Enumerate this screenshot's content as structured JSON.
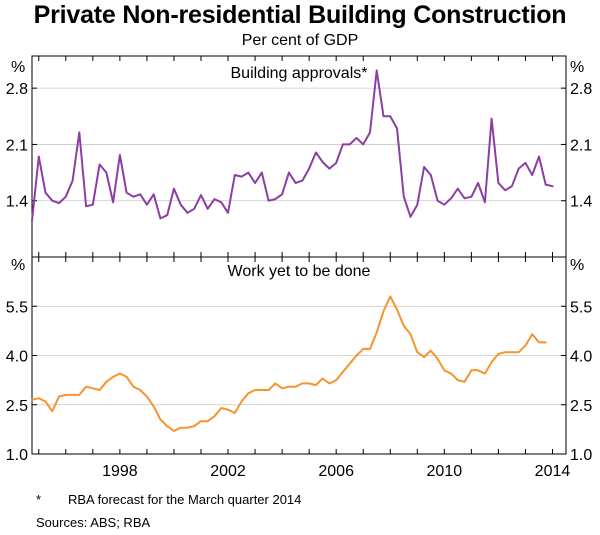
{
  "title": "Private Non-residential Building Construction",
  "subtitle": "Per cent of GDP",
  "footnote": {
    "marker": "*",
    "text": "RBA forecast for the March quarter 2014"
  },
  "sources": "Sources:  ABS; RBA",
  "colors": {
    "approvals": "#8B3FA3",
    "work": "#F7942E",
    "frame": "#000000",
    "grid": "#c8c8c8"
  },
  "chart_data": [
    {
      "type": "line",
      "title": "Building approvals*",
      "unit_label": "%",
      "color": "#8B3FA3",
      "ylim": [
        0.7,
        3.2
      ],
      "yticks": [
        "2.8",
        "2.1",
        "1.4"
      ],
      "ytick_values": [
        2.8,
        2.1,
        1.4
      ],
      "xlim": [
        1994.75,
        2014.5
      ],
      "series": [
        {
          "name": "Building approvals",
          "x": [
            1994.75,
            1995.0,
            1995.25,
            1995.5,
            1995.75,
            1996.0,
            1996.25,
            1996.5,
            1996.75,
            1997.0,
            1997.25,
            1997.5,
            1997.75,
            1998.0,
            1998.25,
            1998.5,
            1998.75,
            1999.0,
            1999.25,
            1999.5,
            1999.75,
            2000.0,
            2000.25,
            2000.5,
            2000.75,
            2001.0,
            2001.25,
            2001.5,
            2001.75,
            2002.0,
            2002.25,
            2002.5,
            2002.75,
            2003.0,
            2003.25,
            2003.5,
            2003.75,
            2004.0,
            2004.25,
            2004.5,
            2004.75,
            2005.0,
            2005.25,
            2005.5,
            2005.75,
            2006.0,
            2006.25,
            2006.5,
            2006.75,
            2007.0,
            2007.25,
            2007.5,
            2007.75,
            2008.0,
            2008.25,
            2008.5,
            2008.75,
            2009.0,
            2009.25,
            2009.5,
            2009.75,
            2010.0,
            2010.25,
            2010.5,
            2010.75,
            2011.0,
            2011.25,
            2011.5,
            2011.75,
            2012.0,
            2012.25,
            2012.5,
            2012.75,
            2013.0,
            2013.25,
            2013.5,
            2013.75,
            2014.0
          ],
          "values": [
            1.15,
            1.95,
            1.5,
            1.4,
            1.37,
            1.45,
            1.65,
            2.25,
            1.33,
            1.35,
            1.85,
            1.75,
            1.38,
            1.97,
            1.5,
            1.45,
            1.48,
            1.35,
            1.48,
            1.18,
            1.22,
            1.55,
            1.35,
            1.25,
            1.3,
            1.47,
            1.3,
            1.42,
            1.38,
            1.25,
            1.72,
            1.7,
            1.75,
            1.62,
            1.75,
            1.4,
            1.42,
            1.48,
            1.75,
            1.62,
            1.65,
            1.8,
            2.0,
            1.88,
            1.8,
            1.87,
            2.1,
            2.1,
            2.18,
            2.1,
            2.25,
            3.02,
            2.45,
            2.45,
            2.3,
            1.45,
            1.2,
            1.35,
            1.82,
            1.72,
            1.4,
            1.35,
            1.43,
            1.55,
            1.43,
            1.45,
            1.62,
            1.38,
            2.42,
            1.62,
            1.53,
            1.58,
            1.8,
            1.87,
            1.72,
            1.95,
            1.6,
            1.58
          ]
        }
      ]
    },
    {
      "type": "line",
      "title": "Work yet to be done",
      "unit_label": "%",
      "color": "#F7942E",
      "ylim": [
        1.0,
        7.0
      ],
      "yticks": [
        "5.5",
        "4.0",
        "2.5",
        "1.0"
      ],
      "ytick_values": [
        5.5,
        4.0,
        2.5,
        1.0
      ],
      "xlim": [
        1994.75,
        2014.5
      ],
      "xticks": [
        "1998",
        "2002",
        "2006",
        "2010",
        "2014"
      ],
      "xtick_values": [
        1998,
        2002,
        2006,
        2010,
        2014
      ],
      "series": [
        {
          "name": "Work yet to be done",
          "x": [
            1994.75,
            1995.0,
            1995.25,
            1995.5,
            1995.75,
            1996.0,
            1996.25,
            1996.5,
            1996.75,
            1997.0,
            1997.25,
            1997.5,
            1997.75,
            1998.0,
            1998.25,
            1998.5,
            1998.75,
            1999.0,
            1999.25,
            1999.5,
            1999.75,
            2000.0,
            2000.25,
            2000.5,
            2000.75,
            2001.0,
            2001.25,
            2001.5,
            2001.75,
            2002.0,
            2002.25,
            2002.5,
            2002.75,
            2003.0,
            2003.25,
            2003.5,
            2003.75,
            2004.0,
            2004.25,
            2004.5,
            2004.75,
            2005.0,
            2005.25,
            2005.5,
            2005.75,
            2006.0,
            2006.25,
            2006.5,
            2006.75,
            2007.0,
            2007.25,
            2007.5,
            2007.75,
            2008.0,
            2008.25,
            2008.5,
            2008.75,
            2009.0,
            2009.25,
            2009.5,
            2009.75,
            2010.0,
            2010.25,
            2010.5,
            2010.75,
            2011.0,
            2011.25,
            2011.5,
            2011.75,
            2012.0,
            2012.25,
            2012.5,
            2012.75,
            2013.0,
            2013.25,
            2013.5,
            2013.75
          ],
          "values": [
            2.65,
            2.7,
            2.6,
            2.3,
            2.75,
            2.8,
            2.8,
            2.8,
            3.05,
            3.0,
            2.95,
            3.2,
            3.35,
            3.45,
            3.35,
            3.05,
            2.95,
            2.75,
            2.45,
            2.05,
            1.85,
            1.7,
            1.8,
            1.8,
            1.85,
            2.0,
            2.0,
            2.15,
            2.4,
            2.35,
            2.25,
            2.6,
            2.85,
            2.95,
            2.95,
            2.95,
            3.15,
            3.0,
            3.05,
            3.05,
            3.15,
            3.15,
            3.1,
            3.3,
            3.15,
            3.25,
            3.5,
            3.75,
            4.0,
            4.2,
            4.2,
            4.7,
            5.35,
            5.8,
            5.4,
            4.9,
            4.65,
            4.1,
            3.95,
            4.15,
            3.9,
            3.55,
            3.45,
            3.25,
            3.2,
            3.55,
            3.55,
            3.45,
            3.8,
            4.05,
            4.1,
            4.1,
            4.1,
            4.3,
            4.65,
            4.4,
            4.4
          ]
        }
      ]
    }
  ]
}
